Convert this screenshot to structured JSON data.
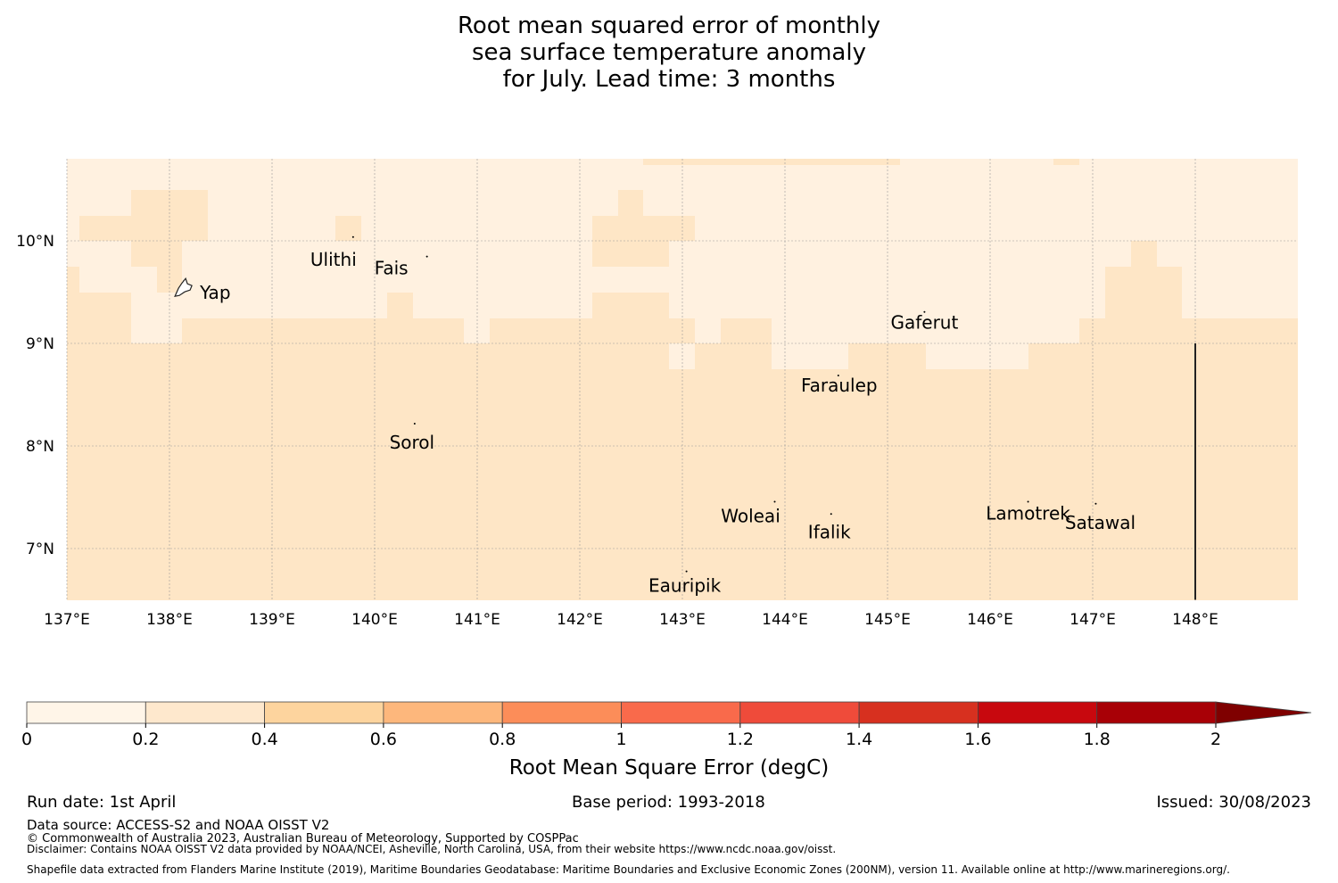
{
  "title": {
    "line1": "Root mean squared error of monthly",
    "line2": "sea surface temperature anomaly",
    "line3": "for July. Lead time: 3 months"
  },
  "map": {
    "lon_range": [
      137,
      149
    ],
    "lat_range": [
      6.5,
      10.8
    ],
    "lon_ticks": [
      {
        "value": 137,
        "label": "137°E"
      },
      {
        "value": 138,
        "label": "138°E"
      },
      {
        "value": 139,
        "label": "139°E"
      },
      {
        "value": 140,
        "label": "140°E"
      },
      {
        "value": 141,
        "label": "141°E"
      },
      {
        "value": 142,
        "label": "142°E"
      },
      {
        "value": 143,
        "label": "143°E"
      },
      {
        "value": 144,
        "label": "144°E"
      },
      {
        "value": 145,
        "label": "145°E"
      },
      {
        "value": 146,
        "label": "146°E"
      },
      {
        "value": 147,
        "label": "147°E"
      },
      {
        "value": 148,
        "label": "148°E"
      }
    ],
    "lat_ticks": [
      {
        "value": 10,
        "label": "10°N"
      },
      {
        "value": 9,
        "label": "9°N"
      },
      {
        "value": 8,
        "label": "8°N"
      },
      {
        "value": 7,
        "label": "7°N"
      }
    ],
    "places": [
      {
        "name": "Yap",
        "lon": 138.14,
        "lat": 9.52
      },
      {
        "name": "Ulithi",
        "lon": 139.79,
        "lat": 9.95
      },
      {
        "name": "Fais",
        "lon": 140.51,
        "lat": 9.76
      },
      {
        "name": "Sorol",
        "lon": 140.39,
        "lat": 8.13
      },
      {
        "name": "Gaferut",
        "lon": 145.36,
        "lat": 9.22
      },
      {
        "name": "Faraulep",
        "lon": 144.52,
        "lat": 8.6
      },
      {
        "name": "Woleai",
        "lon": 143.9,
        "lat": 7.37
      },
      {
        "name": "Ifalik",
        "lon": 144.45,
        "lat": 7.25
      },
      {
        "name": "Lamotrek",
        "lon": 146.37,
        "lat": 7.37
      },
      {
        "name": "Satawal",
        "lon": 147.03,
        "lat": 7.35
      },
      {
        "name": "Eauripik",
        "lon": 143.04,
        "lat": 6.69
      }
    ],
    "boundary_line": {
      "lon": 148,
      "lat_from": 6.5,
      "lat_to": 9.0
    },
    "colors": {
      "low": "#fff1e0",
      "mid": "#fee6c6",
      "grid": "#999999"
    },
    "field_summary": "RMSE 0–0.2 (lightest) in north, 0.2–0.4 across most of region"
  },
  "colorbar": {
    "label": "Root Mean Square Error (degC)",
    "ticks": [
      "0",
      "0.2",
      "0.4",
      "0.6",
      "0.8",
      "1",
      "1.2",
      "1.4",
      "1.6",
      "1.8",
      "2"
    ],
    "colors": [
      "#fff5e8",
      "#fee8cd",
      "#fdd49e",
      "#fdb77c",
      "#fc8d59",
      "#f96a4b",
      "#ef4b3a",
      "#d7301f",
      "#c8080e",
      "#a80006"
    ],
    "extend_color": "#7f0000"
  },
  "footer": {
    "run_date": "Run date: 1st April",
    "base_period": "Base period: 1993-2018",
    "issued": "Issued: 30/08/2023",
    "data_source": "Data source: ACCESS-S2 and NOAA OISST V2",
    "copyright": "© Commonwealth of Australia 2023, Australian Bureau of Meteorology, Supported by COSPPac",
    "disclaimer": "Disclaimer: Contains NOAA OISST V2 data provided by NOAA/NCEI, Asheville, North Carolina, USA, from their website https://www.ncdc.noaa.gov/oisst.",
    "shapefile": "Shapefile data extracted from Flanders Marine Institute (2019), Maritime Boundaries Geodatabase: Maritime Boundaries and Exclusive Economic Zones (200NM), version 11. Available online at http://www.marineregions.org/."
  }
}
